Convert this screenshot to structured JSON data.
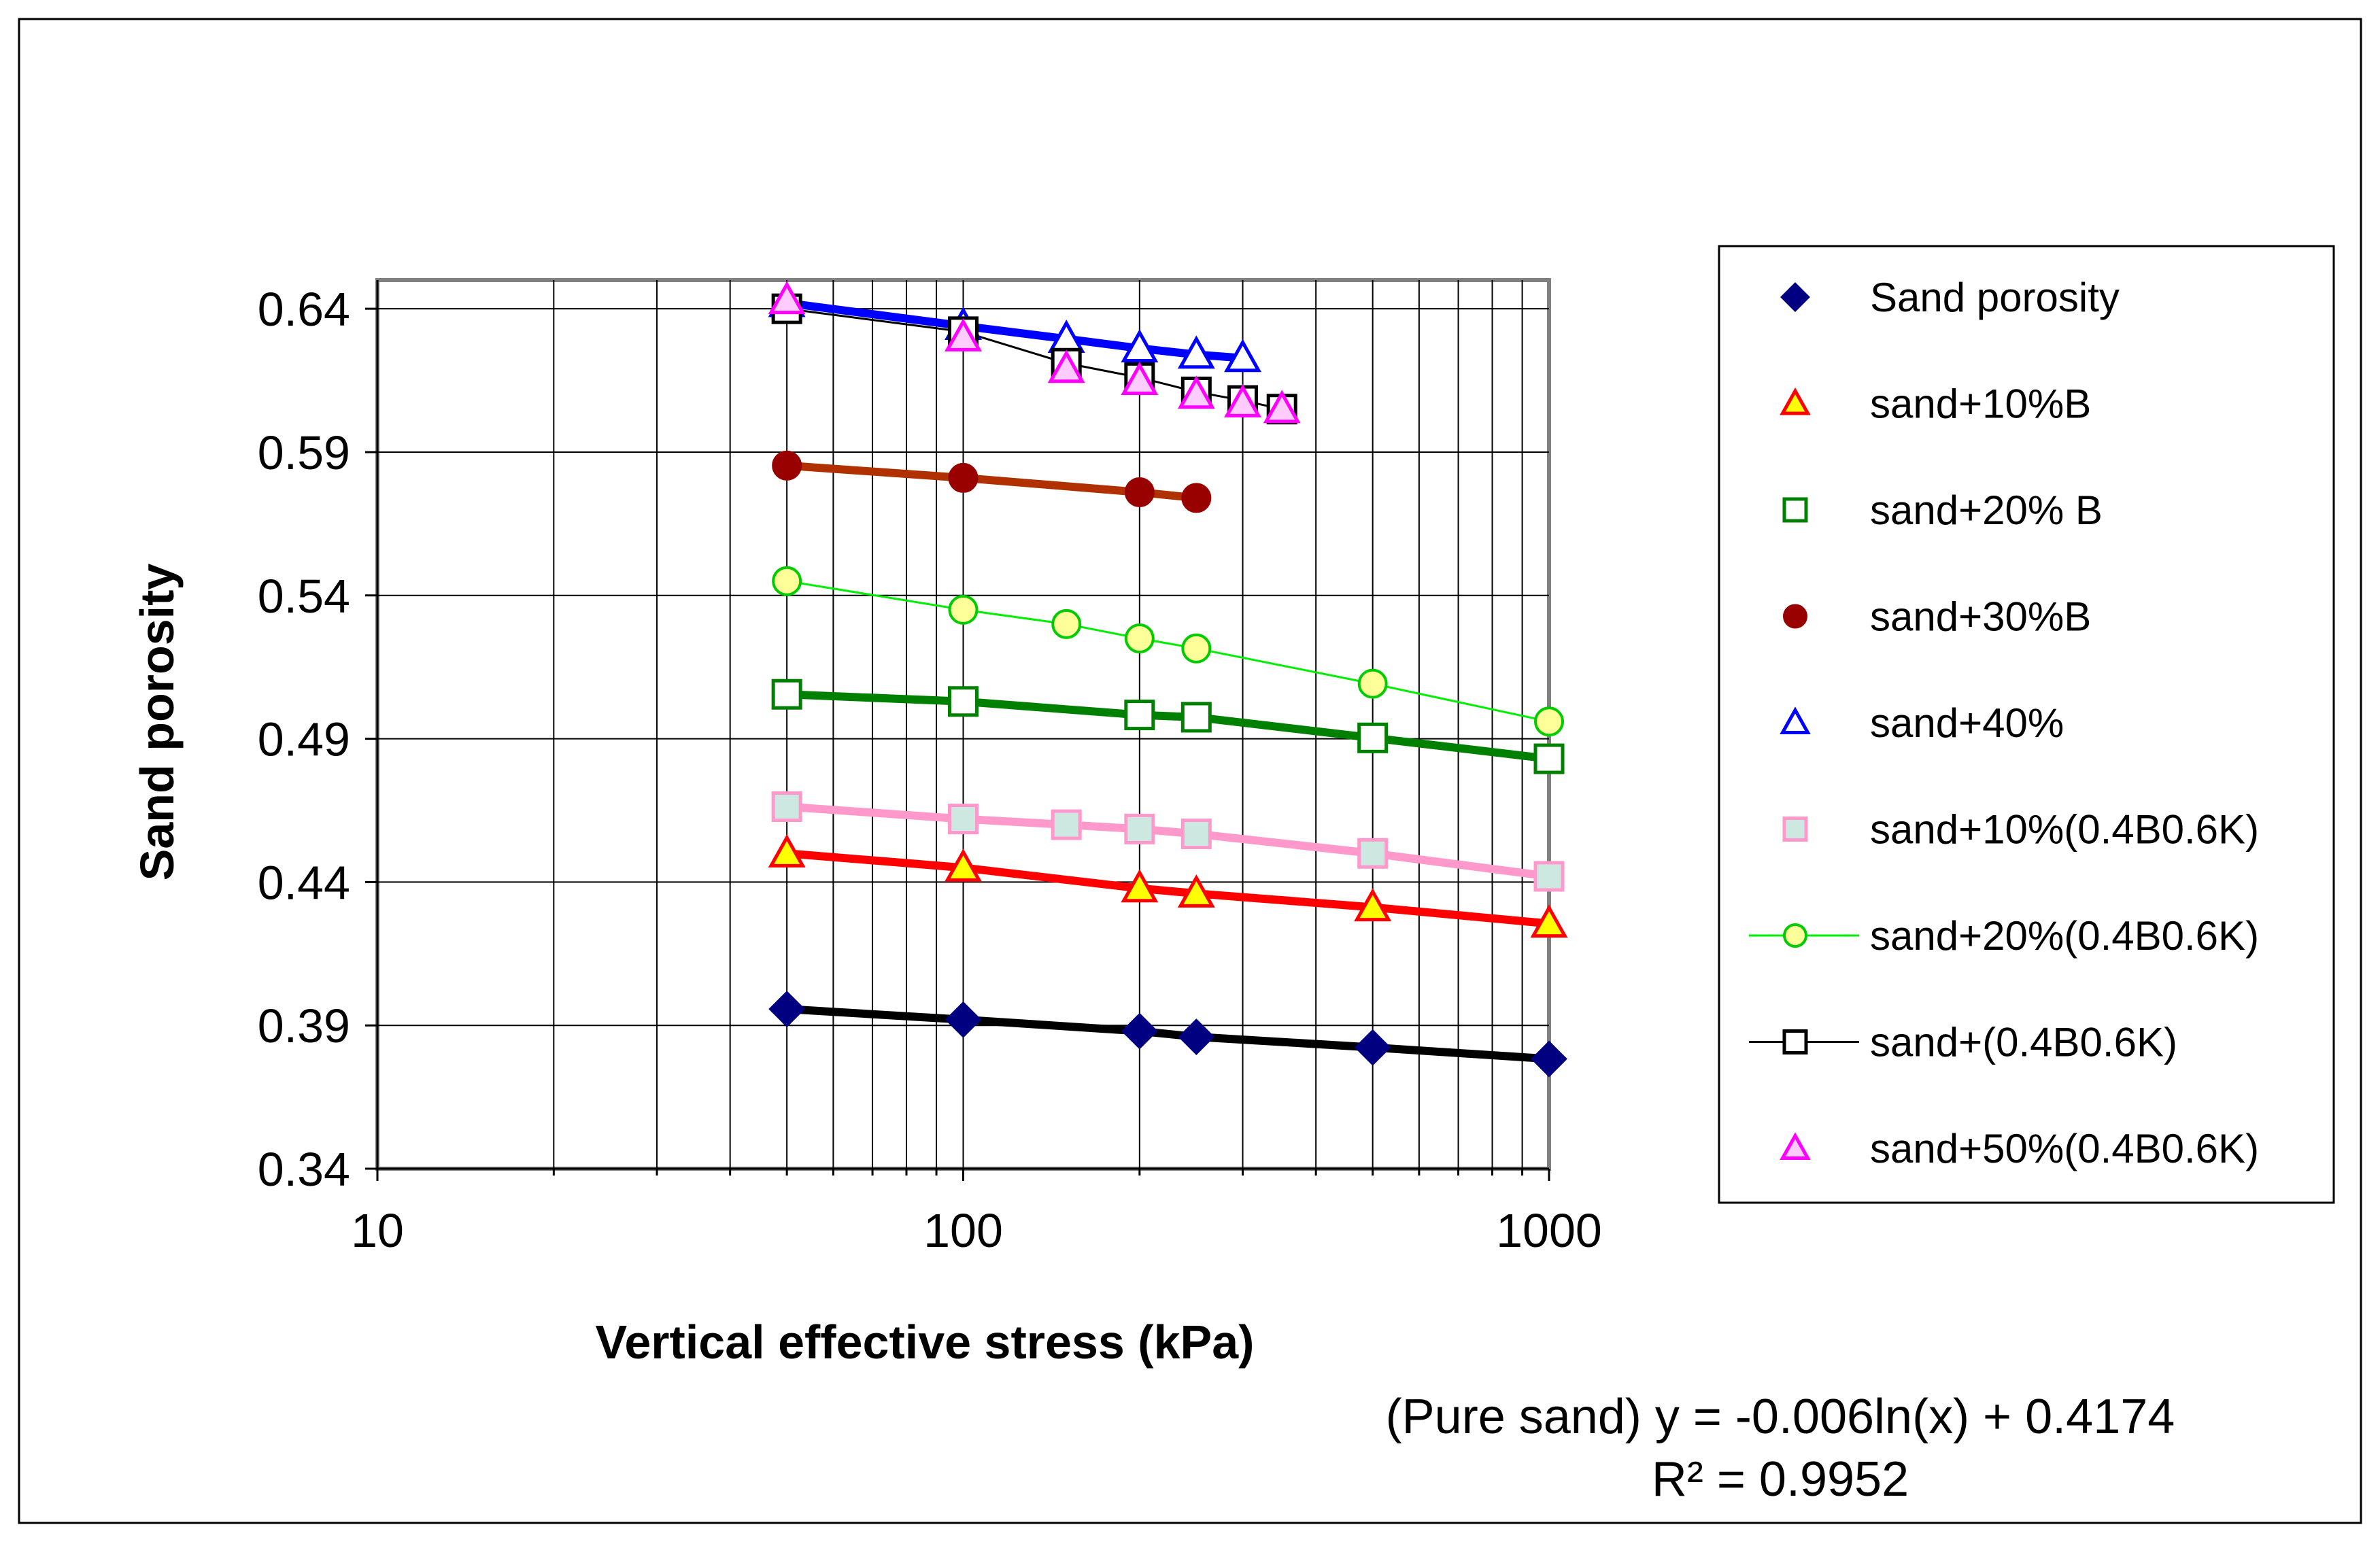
{
  "chart_data": {
    "type": "scatter",
    "title": "",
    "xlabel": "Vertical effective stress (kPa)",
    "ylabel": "Sand porosity",
    "xscale": "log",
    "xlim": [
      10,
      1000
    ],
    "ylim": [
      0.34,
      0.65
    ],
    "x_ticks": [
      10,
      100,
      1000
    ],
    "x_tick_labels": [
      "10",
      "100",
      "1000"
    ],
    "y_ticks": [
      0.34,
      0.39,
      0.44,
      0.49,
      0.54,
      0.59,
      0.64
    ],
    "y_tick_labels": [
      "0.34",
      "0.39",
      "0.44",
      "0.49",
      "0.54",
      "0.59",
      "0.64"
    ],
    "grid": true,
    "legend_position": "right",
    "annotation": {
      "equation": "(Pure sand) y = -0.006ln(x) + 0.4174",
      "r_squared": "R² = 0.9952"
    },
    "series": [
      {
        "name": "Sand porosity",
        "marker": "diamond",
        "marker_color": "#000080",
        "fill": "#000080",
        "line_color": "#000000",
        "line_width": 12,
        "legend_line": false,
        "x": [
          50,
          100,
          200,
          250,
          500,
          1000
        ],
        "y": [
          0.3957,
          0.392,
          0.388,
          0.386,
          0.3823,
          0.3783
        ]
      },
      {
        "name": "sand+10%B",
        "marker": "triangle",
        "marker_color": "#ff0000",
        "fill": "#ffff00",
        "line_color": "#ff0000",
        "line_width": 12,
        "legend_line": false,
        "x": [
          50,
          100,
          200,
          250,
          500,
          1000
        ],
        "y": [
          0.45,
          0.445,
          0.4378,
          0.436,
          0.4312,
          0.4255
        ]
      },
      {
        "name": "sand+20% B",
        "marker": "square",
        "marker_color": "#008000",
        "fill": "none",
        "line_color": "#008000",
        "line_width": 12,
        "legend_line": false,
        "x": [
          50,
          100,
          200,
          250,
          500,
          1000
        ],
        "y": [
          0.5055,
          0.503,
          0.4983,
          0.4975,
          0.4903,
          0.483
        ]
      },
      {
        "name": "sand+30%B",
        "marker": "circle",
        "marker_color": "#990000",
        "fill": "#990000",
        "line_color": "#b03000",
        "line_width": 12,
        "legend_line": false,
        "x": [
          50,
          100,
          200,
          250
        ],
        "y": [
          0.5853,
          0.581,
          0.576,
          0.574
        ]
      },
      {
        "name": "sand+40%",
        "marker": "triangle",
        "marker_color": "#0000ff",
        "fill": "none",
        "line_color": "#0000ff",
        "line_width": 12,
        "legend_line": false,
        "x": [
          50,
          100,
          150,
          200,
          250,
          300
        ],
        "y": [
          0.642,
          0.634,
          0.6295,
          0.6262,
          0.624,
          0.6228
        ]
      },
      {
        "name": "sand+10%(0.4B0.6K)",
        "marker": "square",
        "marker_color": "#ff99cc",
        "fill": "#cce8e0",
        "line_color": "#ff99cc",
        "line_width": 12,
        "legend_line": false,
        "x": [
          50,
          100,
          150,
          200,
          250,
          500,
          1000
        ],
        "y": [
          0.4663,
          0.462,
          0.46,
          0.4585,
          0.4568,
          0.45,
          0.442
        ]
      },
      {
        "name": "sand+20%(0.4B0.6K)",
        "marker": "circle",
        "marker_color": "#00cc00",
        "fill": "#ffff99",
        "line_color": "#00ee00",
        "line_width": 3,
        "legend_line": true,
        "x": [
          50,
          100,
          150,
          200,
          250,
          500,
          1000
        ],
        "y": [
          0.545,
          0.535,
          0.53,
          0.525,
          0.5215,
          0.5092,
          0.496
        ]
      },
      {
        "name": "sand+(0.4B0.6K)",
        "marker": "square",
        "marker_color": "#000000",
        "fill": "none",
        "line_color": "#000000",
        "line_width": 3,
        "legend_line": true,
        "x": [
          50,
          100,
          150,
          200,
          250,
          300,
          350
        ],
        "y": [
          0.64,
          0.632,
          0.621,
          0.616,
          0.611,
          0.608,
          0.605
        ]
      },
      {
        "name": "sand+50%(0.4B0.6K)",
        "marker": "triangle",
        "marker_color": "#ff00ff",
        "fill": "#ffccff",
        "line_color": "#ff00ff",
        "line_width": 0,
        "legend_line": false,
        "x": [
          50,
          100,
          150,
          200,
          250,
          300,
          350
        ],
        "y": [
          0.643,
          0.63,
          0.619,
          0.6148,
          0.61,
          0.607,
          0.605
        ]
      }
    ]
  }
}
